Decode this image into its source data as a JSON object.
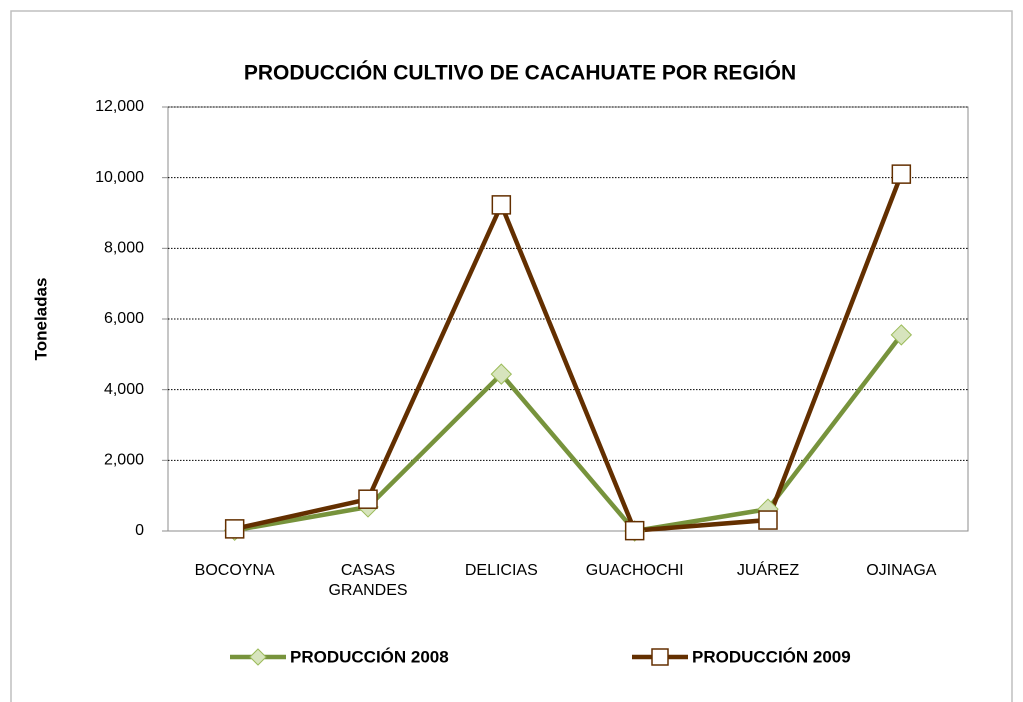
{
  "chart_data": {
    "type": "line",
    "title": "PRODUCCIÓN CULTIVO DE CACAHUATE POR REGIÓN",
    "y_label": "Toneladas",
    "categories": [
      "BOCOYNA",
      "CASAS GRANDES",
      "DELICIAS",
      "GUACHOCHI",
      "JUÁREZ",
      "OJINAGA"
    ],
    "series": [
      {
        "name": "PRODUCCIÓN 2008",
        "color": "#77933c",
        "marker": "diamond",
        "values": [
          20,
          680,
          4440,
          0,
          620,
          5550
        ]
      },
      {
        "name": "PRODUCCIÓN 2009",
        "color": "#632f00",
        "marker": "square",
        "values": [
          60,
          900,
          9230,
          10,
          310,
          10100
        ]
      }
    ],
    "ylim": [
      0,
      12000
    ],
    "yticks": [
      0,
      {
        "value": 2000,
        "label": "2,000"
      },
      {
        "value": 4000,
        "label": "4,000"
      },
      {
        "value": 6000,
        "label": "6,000"
      },
      {
        "value": 8000,
        "label": "8,000"
      },
      {
        "value": 10000,
        "label": "10,000"
      },
      {
        "value": 12000,
        "label": "12,000"
      }
    ],
    "grid": true,
    "legend": "bottom"
  }
}
